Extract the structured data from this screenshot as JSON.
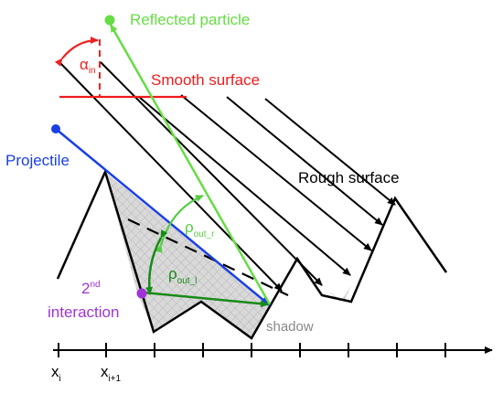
{
  "labels": {
    "reflected_particle": "Reflected particle",
    "smooth_surface": "Smooth surface",
    "alpha_in": "α",
    "alpha_in_sub": "in",
    "projectile": "Projectile",
    "rough_surface": "Rough surface",
    "rho_out_r": "ρ",
    "rho_out_r_sub": "out_r",
    "rho_out_l": "ρ",
    "rho_out_l_sub": "out_l",
    "second": "2",
    "second_sup": "nd",
    "interaction": "interaction",
    "shadow": "shadow",
    "x_i": "x",
    "x_i_sub": "i",
    "x_i1": "x",
    "x_i1_sub": "i+1"
  },
  "colors": {
    "reflected": "#66dd44",
    "smooth": "#ee1c1c",
    "alpha": "#ee2222",
    "projectile": "#1a3fe6",
    "rho_r": "#55cc44",
    "rho_l": "#178a17",
    "interaction": "#a033d6",
    "shadow_text": "#888888",
    "black": "#000000"
  }
}
